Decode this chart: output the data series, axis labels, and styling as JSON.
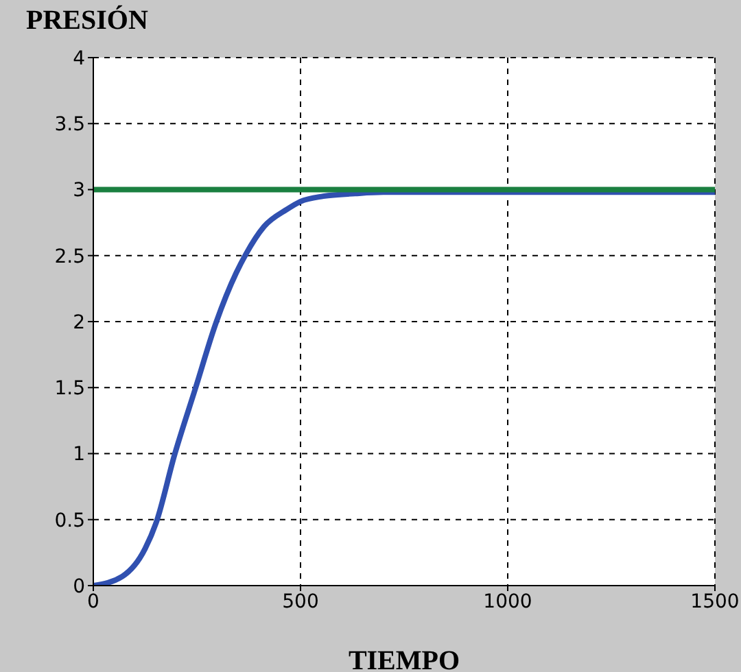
{
  "chart_data": {
    "type": "line",
    "ylabel": "PRESIÓN",
    "xlabel": "TIEMPO",
    "xlim": [
      0,
      1500
    ],
    "xticks": [
      0,
      500,
      1000,
      1500
    ],
    "ylim": [
      0,
      4
    ],
    "yticks": [
      0,
      0.5,
      1,
      1.5,
      2,
      2.5,
      3,
      3.5,
      4
    ],
    "grid": true,
    "marker": "none",
    "line_style": "solid",
    "series": [
      {
        "color": "#3050b0",
        "x": [
          0,
          70,
          125,
          152,
          196,
          246,
          296,
          345,
          368,
          412,
          467,
          500,
          555,
          632,
          700,
          1000,
          1500
        ],
        "values": [
          0,
          0.07,
          0.28,
          0.48,
          0.99,
          1.49,
          1.99,
          2.37,
          2.51,
          2.72,
          2.85,
          2.91,
          2.95,
          2.97,
          2.98,
          2.98,
          2.98
        ]
      },
      {
        "color": "#1a8040",
        "x": [
          0,
          1500
        ],
        "values": [
          3,
          3
        ]
      }
    ]
  }
}
